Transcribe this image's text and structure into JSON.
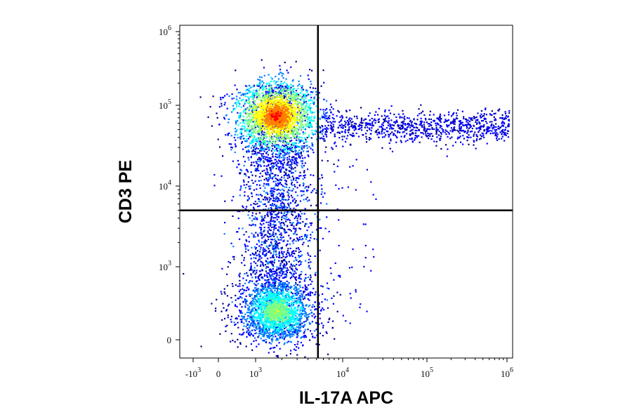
{
  "chart_data": {
    "type": "scatter",
    "style": "flow-cytometry density dot plot",
    "xlabel": "IL-17A APC",
    "ylabel": "CD3 PE",
    "x_scale": "biexponential",
    "y_scale": "biexponential",
    "xlim": [
      -2000,
      1000000
    ],
    "ylim": [
      -300,
      1000000
    ],
    "x_ticks": [
      {
        "base": "-10",
        "exp": "3",
        "value": -1000
      },
      {
        "base": "0",
        "exp": "",
        "value": 0
      },
      {
        "base": "10",
        "exp": "3",
        "value": 1000
      },
      {
        "base": "10",
        "exp": "4",
        "value": 10000
      },
      {
        "base": "10",
        "exp": "5",
        "value": 100000
      },
      {
        "base": "10",
        "exp": "6",
        "value": 1000000
      }
    ],
    "y_ticks": [
      {
        "base": "0",
        "exp": "",
        "value": 0
      },
      {
        "base": "10",
        "exp": "3",
        "value": 1000
      },
      {
        "base": "10",
        "exp": "4",
        "value": 10000
      },
      {
        "base": "10",
        "exp": "5",
        "value": 100000
      },
      {
        "base": "10",
        "exp": "6",
        "value": 1000000
      }
    ],
    "gates": {
      "x": 5200,
      "y": 5000
    },
    "populations": [
      {
        "name_hint": "CD3-high IL-17A-negative",
        "x_center": 1700,
        "y_center": 75000,
        "relative_density": "highest"
      },
      {
        "name_hint": "CD3-low IL-17A-negative",
        "x_center": 1600,
        "y_center": 400,
        "relative_density": "high"
      },
      {
        "name_hint": "CD3+ IL-17A+",
        "x_range": [
          5200,
          850000
        ],
        "y_center": 55000,
        "relative_density": "low"
      }
    ],
    "colormap": [
      "#00008f",
      "#0000ff",
      "#0080ff",
      "#00ffff",
      "#80ff80",
      "#ffff00",
      "#ff8000",
      "#ff0000"
    ],
    "grid": false,
    "legend": "none"
  }
}
